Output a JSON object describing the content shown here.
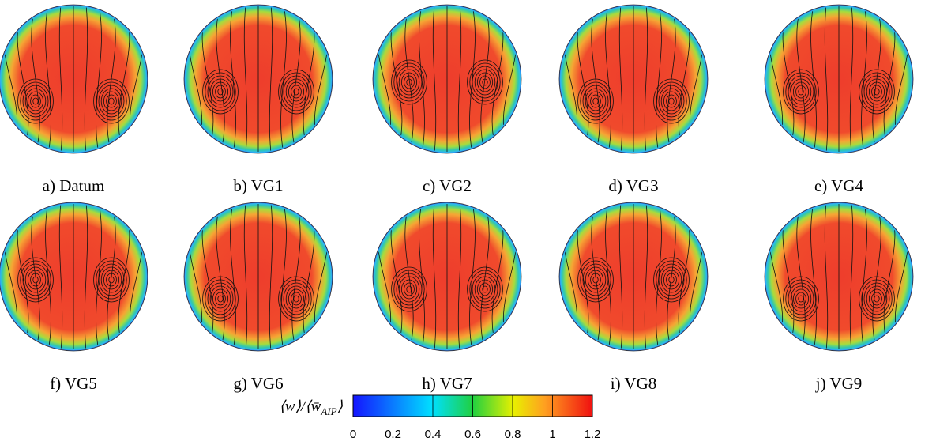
{
  "panels": [
    {
      "label": "a) Datum"
    },
    {
      "label": "b) VG1"
    },
    {
      "label": "c) VG2"
    },
    {
      "label": "d) VG3"
    },
    {
      "label": "e) VG4"
    },
    {
      "label": "f) VG5"
    },
    {
      "label": "g) VG6"
    },
    {
      "label": "h) VG7"
    },
    {
      "label": "i) VG8"
    },
    {
      "label": "j) VG9"
    }
  ],
  "colorbar": {
    "label": "⟨w⟩/⟨w̄",
    "label_subscript": "AIP",
    "label_end": "⟩",
    "lim": [
      0,
      1.2
    ],
    "ticks": [
      0,
      0.2,
      0.4,
      0.6,
      0.8,
      1,
      1.2
    ]
  }
}
